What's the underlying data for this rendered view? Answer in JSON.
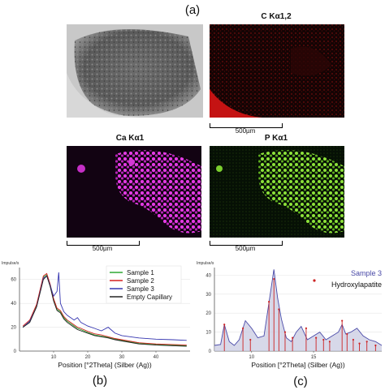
{
  "labels": {
    "panel_a": "(a)",
    "panel_b": "(b)",
    "panel_c": "(c)"
  },
  "maps": {
    "sem": {
      "title": ""
    },
    "carbon": {
      "title": "C Kα1,2",
      "color": "#d0151c"
    },
    "calcium": {
      "title": "Ca Kα1",
      "color": "#e23ae3"
    },
    "phosphorus": {
      "title": "P Kα1",
      "color": "#8de33a"
    }
  },
  "scale_bars": {
    "top_right": "500µm",
    "bottom_left": "500µm",
    "bottom_right": "500µm"
  },
  "chart_data": [
    {
      "type": "line",
      "panel": "b",
      "ylabel": "Impulse/s",
      "xlabel": "Position [°2Theta] (Silber (Ag))",
      "xlim": [
        0,
        50
      ],
      "ylim": [
        0,
        70
      ],
      "xticks": [
        10,
        20,
        30,
        40
      ],
      "yticks": [
        0,
        20,
        40,
        60
      ],
      "legend": "top-right",
      "x": [
        1,
        3,
        5,
        7,
        8,
        9,
        10,
        11,
        11.5,
        12,
        13,
        14,
        16,
        17,
        18,
        20,
        22,
        24,
        26,
        28,
        30,
        35,
        40,
        45,
        49
      ],
      "series": [
        {
          "name": "Sample 1",
          "color": "#2ea832",
          "values": [
            20,
            25,
            38,
            62,
            64,
            55,
            43,
            35,
            34,
            33,
            28,
            25,
            21,
            19,
            18,
            15.5,
            13.5,
            12.5,
            11.5,
            10,
            9,
            6.5,
            5.5,
            5,
            4.5
          ]
        },
        {
          "name": "Sample 2",
          "color": "#d42020",
          "values": [
            21,
            26,
            39,
            63,
            65,
            56,
            44,
            36,
            35,
            34,
            29,
            26,
            22,
            20,
            19,
            16.5,
            14.5,
            13.5,
            12,
            10.5,
            9.5,
            7,
            6,
            5.5,
            5
          ]
        },
        {
          "name": "Sample 3",
          "color": "#3535b0",
          "values": [
            20,
            25,
            37,
            61,
            63,
            55,
            46,
            50,
            66,
            40,
            33,
            30,
            26,
            28,
            24,
            21,
            19,
            17,
            20,
            15,
            13,
            11,
            10,
            9.5,
            9
          ]
        },
        {
          "name": "Empty Capillary",
          "color": "#222222",
          "values": [
            20,
            24,
            37,
            60,
            63,
            54,
            42,
            34,
            33,
            32,
            27,
            24,
            20,
            18,
            17,
            15,
            13,
            12,
            11,
            9.5,
            8.5,
            6,
            5,
            4.5,
            4
          ]
        }
      ]
    },
    {
      "type": "line",
      "panel": "c",
      "ylabel": "Impulse/s",
      "xlabel": "Position [°2Theta] (Silber (Ag))",
      "xlim": [
        7,
        20.5
      ],
      "ylim": [
        0,
        44
      ],
      "xticks": [
        10,
        15
      ],
      "yticks": [
        0,
        10,
        20,
        30,
        40
      ],
      "legend": "top-right",
      "x": [
        7,
        7.5,
        7.8,
        8.2,
        8.6,
        9,
        9.5,
        10,
        10.5,
        11,
        11.5,
        11.8,
        12.1,
        12.4,
        12.8,
        13.2,
        13.6,
        14,
        14.5,
        15,
        15.5,
        16,
        16.5,
        17,
        17.3,
        17.6,
        18,
        18.5,
        19,
        19.5,
        20,
        20.5
      ],
      "series": [
        {
          "name": "Sample 3",
          "color": "#4a4aa8",
          "values": [
            3,
            3.5,
            14,
            5,
            3,
            6,
            16,
            12,
            7,
            8,
            30,
            43,
            28,
            17,
            7,
            5,
            10,
            13,
            6,
            8,
            10,
            6,
            8,
            10,
            14,
            9,
            10,
            12,
            8,
            6,
            5,
            3
          ]
        },
        {
          "name": "Hydroxylapatite",
          "color": "#cc2222",
          "sticks": [
            [
              7.8,
              14
            ],
            [
              9.3,
              12
            ],
            [
              9.9,
              6
            ],
            [
              11.4,
              26
            ],
            [
              11.8,
              38
            ],
            [
              12.2,
              22
            ],
            [
              12.7,
              10
            ],
            [
              13.3,
              7
            ],
            [
              14.4,
              12
            ],
            [
              15.2,
              7
            ],
            [
              15.8,
              6
            ],
            [
              16.3,
              5
            ],
            [
              17.3,
              16
            ],
            [
              17.7,
              9
            ],
            [
              18.2,
              6
            ],
            [
              18.7,
              4
            ],
            [
              19.3,
              5
            ],
            [
              20,
              3
            ]
          ]
        }
      ]
    }
  ]
}
